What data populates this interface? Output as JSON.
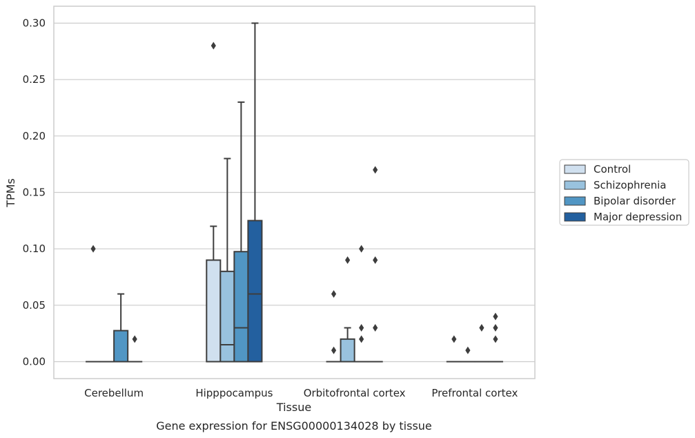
{
  "chart_data": {
    "type": "box",
    "title": "",
    "caption": "Gene expression for ENSG00000134028 by tissue",
    "xlabel": "Tissue",
    "ylabel": "TPMs",
    "ylim": [
      -0.015,
      0.315
    ],
    "yticks": [
      "0.00",
      "0.05",
      "0.10",
      "0.15",
      "0.20",
      "0.25",
      "0.30"
    ],
    "ytick_values": [
      0,
      0.05,
      0.1,
      0.15,
      0.2,
      0.25,
      0.3
    ],
    "grid": "horizontal",
    "legend_position": "right",
    "categories": [
      "Cerebellum",
      "Hipppocampus",
      "Orbitofrontal cortex",
      "Prefrontal cortex"
    ],
    "series": [
      {
        "name": "Control",
        "color": "#d0e0ef",
        "boxes": [
          {
            "q1": 0,
            "median": 0,
            "q3": 0,
            "whisker_low": 0,
            "whisker_high": 0,
            "outliers": [
              0.1
            ]
          },
          {
            "q1": 0,
            "median": 0,
            "q3": 0.09,
            "whisker_low": 0,
            "whisker_high": 0.12,
            "outliers": [
              0.28
            ]
          },
          {
            "q1": 0,
            "median": 0,
            "q3": 0,
            "whisker_low": 0,
            "whisker_high": 0,
            "outliers": [
              0.01,
              0.06
            ]
          },
          {
            "q1": 0,
            "median": 0,
            "q3": 0,
            "whisker_low": 0,
            "whisker_high": 0,
            "outliers": [
              0.02
            ]
          }
        ]
      },
      {
        "name": "Schizophrenia",
        "color": "#99c2de",
        "boxes": [
          {
            "q1": 0,
            "median": 0,
            "q3": 0,
            "whisker_low": 0,
            "whisker_high": 0,
            "outliers": []
          },
          {
            "q1": 0,
            "median": 0.015,
            "q3": 0.08,
            "whisker_low": 0,
            "whisker_high": 0.18,
            "outliers": []
          },
          {
            "q1": 0,
            "median": 0,
            "q3": 0.02,
            "whisker_low": 0,
            "whisker_high": 0.03,
            "outliers": [
              0.09
            ]
          },
          {
            "q1": 0,
            "median": 0,
            "q3": 0,
            "whisker_low": 0,
            "whisker_high": 0,
            "outliers": [
              0.01
            ]
          }
        ]
      },
      {
        "name": "Bipolar disorder",
        "color": "#5196c4",
        "boxes": [
          {
            "q1": 0,
            "median": 0,
            "q3": 0.0275,
            "whisker_low": 0,
            "whisker_high": 0.06,
            "outliers": []
          },
          {
            "q1": 0,
            "median": 0.03,
            "q3": 0.0975,
            "whisker_low": 0,
            "whisker_high": 0.23,
            "outliers": []
          },
          {
            "q1": 0,
            "median": 0,
            "q3": 0,
            "whisker_low": 0,
            "whisker_high": 0,
            "outliers": [
              0.02,
              0.03,
              0.1
            ]
          },
          {
            "q1": 0,
            "median": 0,
            "q3": 0,
            "whisker_low": 0,
            "whisker_high": 0,
            "outliers": [
              0.03
            ]
          }
        ]
      },
      {
        "name": "Major depression",
        "color": "#23609f",
        "boxes": [
          {
            "q1": 0,
            "median": 0,
            "q3": 0,
            "whisker_low": 0,
            "whisker_high": 0,
            "outliers": [
              0.02
            ]
          },
          {
            "q1": 0,
            "median": 0.06,
            "q3": 0.125,
            "whisker_low": 0,
            "whisker_high": 0.3,
            "outliers": []
          },
          {
            "q1": 0,
            "median": 0,
            "q3": 0,
            "whisker_low": 0,
            "whisker_high": 0,
            "outliers": [
              0.03,
              0.09,
              0.17
            ]
          },
          {
            "q1": 0,
            "median": 0,
            "q3": 0,
            "whisker_low": 0,
            "whisker_high": 0,
            "outliers": [
              0.02,
              0.03,
              0.04
            ]
          }
        ]
      }
    ]
  }
}
